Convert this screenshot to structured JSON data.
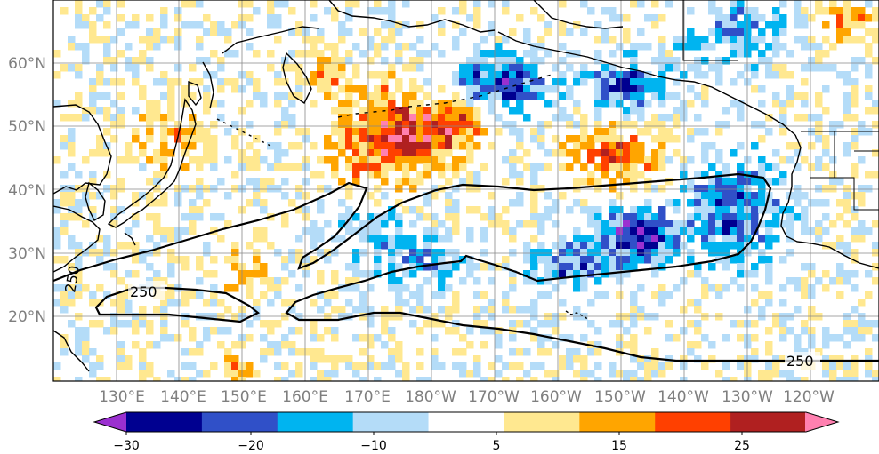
{
  "map": {
    "lat_labels": [
      "60°N",
      "50°N",
      "40°N",
      "30°N",
      "20°N"
    ],
    "lon_labels": [
      "130°E",
      "140°E",
      "150°E",
      "160°E",
      "170°E",
      "180°W",
      "170°W",
      "160°W",
      "150°W",
      "140°W",
      "130°W",
      "120°W"
    ],
    "contour_labels": [
      "250",
      "250",
      "250"
    ]
  },
  "colorbar": {
    "colors": [
      "#9b30d0",
      "#000090",
      "#3050c8",
      "#00b4f0",
      "#b4dcf8",
      "#ffffff",
      "#ffe890",
      "#ffa500",
      "#ff4000",
      "#b02020",
      "#ff80b0"
    ],
    "ticks": [
      "−30",
      "−20",
      "−10",
      "5",
      "15",
      "25"
    ]
  }
}
